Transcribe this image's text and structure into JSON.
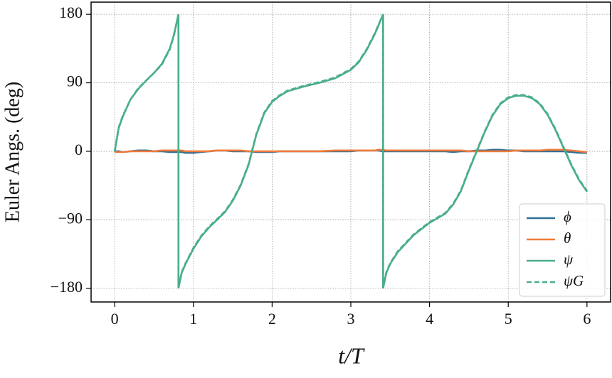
{
  "chart_data": {
    "type": "line",
    "xlabel": "t/T",
    "ylabel": "Euler Angs. (deg)",
    "x": [
      0,
      0.05,
      0.1,
      0.2,
      0.3,
      0.4,
      0.5,
      0.6,
      0.7,
      0.75,
      0.81,
      0.81,
      0.85,
      0.9,
      1.0,
      1.1,
      1.2,
      1.3,
      1.4,
      1.5,
      1.6,
      1.7,
      1.8,
      1.9,
      2.0,
      2.1,
      2.2,
      2.4,
      2.6,
      2.8,
      3.0,
      3.1,
      3.2,
      3.3,
      3.35,
      3.41,
      3.41,
      3.45,
      3.5,
      3.6,
      3.8,
      4.0,
      4.2,
      4.3,
      4.4,
      4.5,
      4.6,
      4.7,
      4.8,
      4.9,
      5.0,
      5.1,
      5.2,
      5.3,
      5.4,
      5.5,
      5.6,
      5.7,
      5.8,
      5.9,
      6.0
    ],
    "series": [
      {
        "name": "ϕ",
        "color": "#2f6f98",
        "linestyle": "solid",
        "values": [
          0,
          0,
          -1,
          0,
          1,
          1,
          0,
          0,
          -1,
          -1,
          -1,
          -1,
          -1,
          -2,
          -2,
          -1,
          0,
          1,
          1,
          0,
          0,
          0,
          -1,
          -1,
          -1,
          0,
          0,
          0,
          0,
          0,
          0,
          1,
          1,
          1,
          1,
          0,
          0,
          0,
          0,
          0,
          0,
          0,
          0,
          -1,
          0,
          0,
          1,
          1,
          2,
          2,
          1,
          1,
          0,
          0,
          0,
          0,
          0,
          0,
          -1,
          -2,
          -2
        ]
      },
      {
        "name": "θ",
        "color": "#f07b3a",
        "linestyle": "solid",
        "values": [
          -1,
          -1,
          -1,
          0,
          0,
          0,
          0,
          1,
          1,
          1,
          1,
          1,
          1,
          0,
          0,
          0,
          0,
          1,
          1,
          1,
          1,
          0,
          0,
          0,
          0,
          0,
          0,
          0,
          0,
          1,
          1,
          1,
          1,
          1,
          2,
          2,
          2,
          1,
          1,
          1,
          1,
          1,
          1,
          1,
          1,
          0,
          0,
          0,
          0,
          0,
          0,
          1,
          1,
          1,
          1,
          2,
          2,
          2,
          1,
          0,
          -1
        ]
      },
      {
        "name": "ψ",
        "color": "#4aae8a",
        "linestyle": "solid",
        "values": [
          0,
          30,
          45,
          68,
          82,
          93,
          103,
          115,
          135,
          152,
          180,
          -180,
          -160,
          -148,
          -128,
          -112,
          -100,
          -90,
          -80,
          -65,
          -45,
          -18,
          22,
          50,
          65,
          73,
          79,
          85,
          90,
          96,
          107,
          117,
          133,
          153,
          165,
          180,
          -180,
          -160,
          -148,
          -132,
          -110,
          -94,
          -82,
          -70,
          -52,
          -25,
          0,
          25,
          47,
          62,
          70,
          73,
          73,
          70,
          62,
          48,
          28,
          5,
          -18,
          -38,
          -53
        ]
      },
      {
        "name": "ψG",
        "color": "#4aae8a",
        "linestyle": "dashed",
        "values": [
          0,
          31,
          46,
          68,
          83,
          93,
          103,
          114,
          134,
          151,
          180,
          -180,
          -159,
          -147,
          -127,
          -111,
          -99,
          -89,
          -79,
          -64,
          -44,
          -17,
          23,
          51,
          66,
          74,
          80,
          86,
          91,
          97,
          108,
          118,
          134,
          154,
          166,
          180,
          -180,
          -159,
          -147,
          -131,
          -109,
          -93,
          -81,
          -69,
          -51,
          -24,
          1,
          26,
          48,
          63,
          71,
          74,
          74,
          71,
          63,
          49,
          29,
          6,
          -17,
          -37,
          -52
        ]
      }
    ],
    "xlim": [
      -0.3,
      6.3
    ],
    "xticks": [
      0,
      1,
      2,
      3,
      4,
      5,
      6
    ],
    "ylim": [
      -198,
      196
    ],
    "yticks": [
      {
        "value": -180,
        "label": "−180"
      },
      {
        "value": -90,
        "label": "−90"
      },
      0,
      90,
      180
    ],
    "grid": true,
    "legend": "lower right"
  }
}
